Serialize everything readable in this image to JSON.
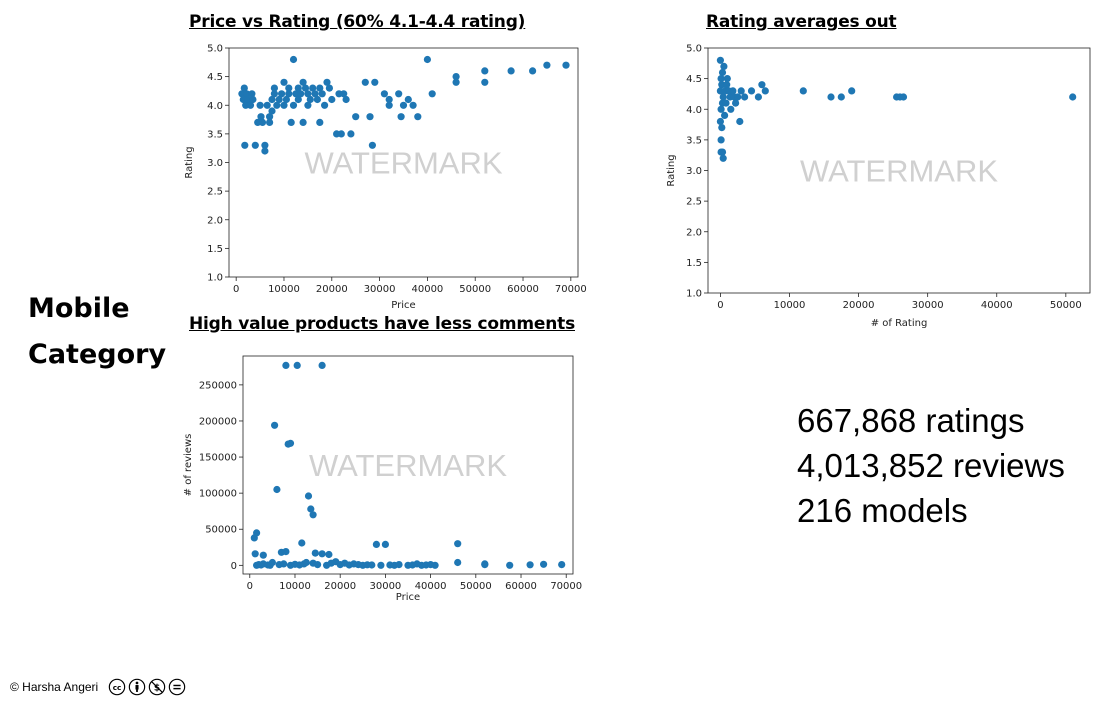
{
  "page": {
    "side_label_line1": "Mobile",
    "side_label_line2": "Category",
    "stats": [
      "667,868 ratings",
      "4,013,852 reviews",
      "216 models"
    ],
    "footer_text": "© Harsha Angeri",
    "license_icons": [
      "cc-icon",
      "by-icon",
      "nc-icon",
      "nd-icon"
    ]
  },
  "colors": {
    "marker": "#1f77b4",
    "watermark": "#d0d0d0"
  },
  "chart_data": [
    {
      "id": "chart1",
      "type": "scatter",
      "title": "Price vs Rating (60% 4.1-4.4 rating)",
      "xlabel": "Price",
      "ylabel": "Rating",
      "watermark": "WATERMARK",
      "xlim": [
        -1500,
        71500
      ],
      "ylim": [
        1.0,
        5.0
      ],
      "xticks": [
        0,
        10000,
        20000,
        30000,
        40000,
        50000,
        60000,
        70000
      ],
      "yticks": [
        1.0,
        1.5,
        2.0,
        2.5,
        3.0,
        3.5,
        4.0,
        4.5,
        5.0
      ],
      "ytick_labels": [
        "1.0",
        "1.5",
        "2.0",
        "2.5",
        "3.0",
        "3.5",
        "4.0",
        "4.5",
        "5.0"
      ],
      "points": [
        [
          1200,
          4.2
        ],
        [
          1500,
          4.1
        ],
        [
          1700,
          4.3
        ],
        [
          2000,
          4.0
        ],
        [
          2200,
          4.2
        ],
        [
          2500,
          4.1
        ],
        [
          1800,
          3.3
        ],
        [
          3000,
          4.0
        ],
        [
          3300,
          4.2
        ],
        [
          3500,
          4.1
        ],
        [
          4000,
          3.3
        ],
        [
          4500,
          3.7
        ],
        [
          5000,
          4.0
        ],
        [
          5200,
          3.8
        ],
        [
          5500,
          3.7
        ],
        [
          6000,
          3.3
        ],
        [
          6000,
          3.2
        ],
        [
          6500,
          4.0
        ],
        [
          7000,
          3.8
        ],
        [
          7000,
          3.7
        ],
        [
          7500,
          4.1
        ],
        [
          7500,
          3.9
        ],
        [
          8000,
          4.2
        ],
        [
          8000,
          4.3
        ],
        [
          8500,
          4.0
        ],
        [
          9000,
          4.1
        ],
        [
          9500,
          4.2
        ],
        [
          10000,
          4.4
        ],
        [
          10000,
          4.0
        ],
        [
          10500,
          4.1
        ],
        [
          11000,
          4.2
        ],
        [
          11000,
          4.3
        ],
        [
          11500,
          3.7
        ],
        [
          12000,
          4.0
        ],
        [
          12000,
          4.8
        ],
        [
          12500,
          4.2
        ],
        [
          13000,
          4.3
        ],
        [
          13000,
          4.1
        ],
        [
          13500,
          4.2
        ],
        [
          14000,
          4.4
        ],
        [
          14000,
          3.7
        ],
        [
          14500,
          4.3
        ],
        [
          15000,
          4.2
        ],
        [
          15000,
          4.0
        ],
        [
          15500,
          4.1
        ],
        [
          16000,
          4.3
        ],
        [
          16500,
          4.2
        ],
        [
          17000,
          4.1
        ],
        [
          17500,
          4.3
        ],
        [
          17500,
          3.7
        ],
        [
          18000,
          4.2
        ],
        [
          18500,
          4.0
        ],
        [
          19000,
          4.4
        ],
        [
          19500,
          4.3
        ],
        [
          20000,
          4.1
        ],
        [
          21000,
          3.5
        ],
        [
          21500,
          4.2
        ],
        [
          22000,
          3.5
        ],
        [
          22500,
          4.2
        ],
        [
          23000,
          4.1
        ],
        [
          24000,
          3.5
        ],
        [
          25000,
          3.8
        ],
        [
          27000,
          4.4
        ],
        [
          28000,
          3.8
        ],
        [
          28500,
          3.3
        ],
        [
          29000,
          4.4
        ],
        [
          31000,
          4.2
        ],
        [
          32000,
          4.0
        ],
        [
          32000,
          4.1
        ],
        [
          34000,
          4.2
        ],
        [
          34500,
          3.8
        ],
        [
          35000,
          4.0
        ],
        [
          36000,
          4.1
        ],
        [
          37000,
          4.0
        ],
        [
          38000,
          3.8
        ],
        [
          40000,
          4.8
        ],
        [
          41000,
          4.2
        ],
        [
          46000,
          4.5
        ],
        [
          46000,
          4.4
        ],
        [
          52000,
          4.6
        ],
        [
          52000,
          4.4
        ],
        [
          57500,
          4.6
        ],
        [
          62000,
          4.6
        ],
        [
          65000,
          4.7
        ],
        [
          69000,
          4.7
        ]
      ]
    },
    {
      "id": "chart2",
      "type": "scatter",
      "title": "Rating averages out",
      "xlabel": "# of Rating",
      "ylabel": "Rating",
      "watermark": "WATERMARK",
      "xlim": [
        -1800,
        53500
      ],
      "ylim": [
        1.0,
        5.0
      ],
      "xticks": [
        0,
        10000,
        20000,
        30000,
        40000,
        50000
      ],
      "yticks": [
        1.0,
        1.5,
        2.0,
        2.5,
        3.0,
        3.5,
        4.0,
        4.5,
        5.0
      ],
      "ytick_labels": [
        "1.0",
        "1.5",
        "2.0",
        "2.5",
        "3.0",
        "3.5",
        "4.0",
        "4.5",
        "5.0"
      ],
      "points": [
        [
          0,
          4.8
        ],
        [
          300,
          4.6
        ],
        [
          500,
          4.7
        ],
        [
          100,
          4.5
        ],
        [
          200,
          4.4
        ],
        [
          0,
          4.3
        ],
        [
          400,
          4.2
        ],
        [
          300,
          4.1
        ],
        [
          100,
          4.0
        ],
        [
          0,
          3.8
        ],
        [
          200,
          3.7
        ],
        [
          100,
          3.5
        ],
        [
          300,
          3.3
        ],
        [
          400,
          3.2
        ],
        [
          100,
          3.3
        ],
        [
          600,
          3.9
        ],
        [
          700,
          4.3
        ],
        [
          800,
          4.1
        ],
        [
          900,
          4.4
        ],
        [
          1000,
          4.5
        ],
        [
          1200,
          4.3
        ],
        [
          1400,
          4.2
        ],
        [
          1500,
          4.0
        ],
        [
          1800,
          4.3
        ],
        [
          2000,
          4.2
        ],
        [
          2200,
          4.1
        ],
        [
          2500,
          4.2
        ],
        [
          2800,
          3.8
        ],
        [
          3000,
          4.3
        ],
        [
          3500,
          4.2
        ],
        [
          4500,
          4.3
        ],
        [
          5500,
          4.2
        ],
        [
          6000,
          4.4
        ],
        [
          6500,
          4.3
        ],
        [
          12000,
          4.3
        ],
        [
          16000,
          4.2
        ],
        [
          17500,
          4.2
        ],
        [
          19000,
          4.3
        ],
        [
          25500,
          4.2
        ],
        [
          26000,
          4.2
        ],
        [
          26500,
          4.2
        ],
        [
          51000,
          4.2
        ]
      ]
    },
    {
      "id": "chart3",
      "type": "scatter",
      "title": "High value products have less comments",
      "xlabel": "Price",
      "ylabel": "# of reviews",
      "watermark": "WATERMARK",
      "xlim": [
        -1500,
        71500
      ],
      "ylim": [
        -12000,
        290000
      ],
      "xticks": [
        0,
        10000,
        20000,
        30000,
        40000,
        50000,
        60000,
        70000
      ],
      "yticks": [
        0,
        50000,
        100000,
        150000,
        200000,
        250000
      ],
      "ytick_labels": [
        "0",
        "50000",
        "100000",
        "150000",
        "200000",
        "250000"
      ],
      "points": [
        [
          1000,
          38000
        ],
        [
          1500,
          45000
        ],
        [
          1200,
          16000
        ],
        [
          1500,
          0
        ],
        [
          2000,
          1000
        ],
        [
          2500,
          500
        ],
        [
          3000,
          2000
        ],
        [
          3000,
          14000
        ],
        [
          4000,
          500
        ],
        [
          4500,
          0
        ],
        [
          5000,
          4000
        ],
        [
          5500,
          194000
        ],
        [
          6000,
          105000
        ],
        [
          6500,
          1000
        ],
        [
          7000,
          18000
        ],
        [
          7500,
          2000
        ],
        [
          8000,
          19000
        ],
        [
          8000,
          277000
        ],
        [
          8500,
          168000
        ],
        [
          9000,
          169000
        ],
        [
          9000,
          0
        ],
        [
          10000,
          1500
        ],
        [
          10500,
          277000
        ],
        [
          11000,
          500
        ],
        [
          11500,
          31000
        ],
        [
          12000,
          2000
        ],
        [
          12500,
          4000
        ],
        [
          13000,
          96000
        ],
        [
          13500,
          78000
        ],
        [
          14000,
          70000
        ],
        [
          14000,
          3000
        ],
        [
          14500,
          17000
        ],
        [
          15000,
          1000
        ],
        [
          16000,
          277000
        ],
        [
          16000,
          16000
        ],
        [
          17000,
          0
        ],
        [
          17500,
          15000
        ],
        [
          18000,
          3000
        ],
        [
          19000,
          5000
        ],
        [
          20000,
          1000
        ],
        [
          21000,
          3000
        ],
        [
          22000,
          500
        ],
        [
          23000,
          2000
        ],
        [
          24000,
          1000
        ],
        [
          25000,
          0
        ],
        [
          26000,
          800
        ],
        [
          27000,
          500
        ],
        [
          28000,
          29000
        ],
        [
          29000,
          0
        ],
        [
          30000,
          29000
        ],
        [
          31000,
          500
        ],
        [
          32000,
          0
        ],
        [
          33000,
          1000
        ],
        [
          35000,
          0
        ],
        [
          36000,
          500
        ],
        [
          37000,
          2000
        ],
        [
          38000,
          0
        ],
        [
          39000,
          500
        ],
        [
          40000,
          1000
        ],
        [
          41000,
          0
        ],
        [
          46000,
          30000
        ],
        [
          46000,
          4000
        ],
        [
          52000,
          2000
        ],
        [
          52000,
          1000
        ],
        [
          57500,
          0
        ],
        [
          62000,
          800
        ],
        [
          65000,
          1500
        ],
        [
          69000,
          1000
        ]
      ]
    }
  ]
}
